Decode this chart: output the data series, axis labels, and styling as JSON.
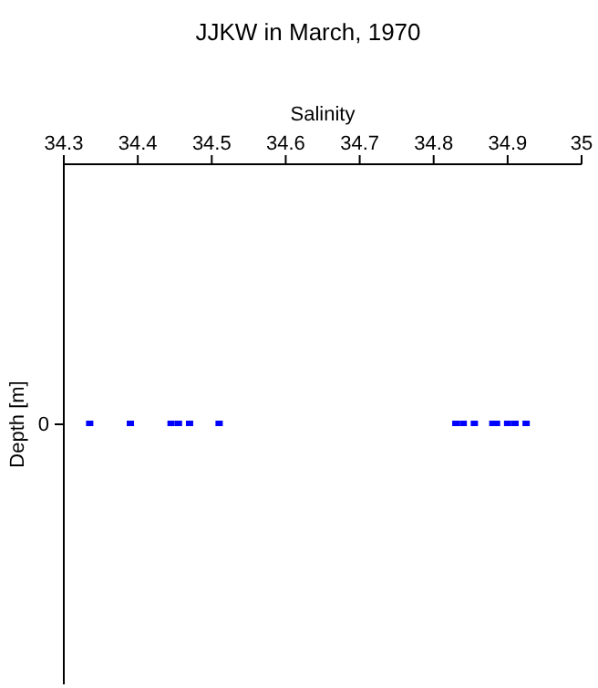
{
  "chart_data": {
    "type": "scatter",
    "orientation": "horizontal",
    "title": "JJKW in March, 1970",
    "xlabel": "Salinity",
    "ylabel": "Depth [m]",
    "categories": [
      "0"
    ],
    "xlim": [
      34.3,
      35
    ],
    "xticks": [
      34.3,
      34.4,
      34.5,
      34.6,
      34.7,
      34.8,
      34.9,
      35
    ],
    "marker": "square",
    "series": [
      {
        "color": "#0000ff",
        "values": [
          34.335
        ]
      },
      {
        "color": "#0000ff",
        "values": [
          34.39
        ]
      },
      {
        "color": "#0000ff",
        "values": [
          34.445
        ]
      },
      {
        "color": "#0000ff",
        "values": [
          34.455
        ]
      },
      {
        "color": "#0000ff",
        "values": [
          34.47
        ]
      },
      {
        "color": "#0000ff",
        "values": [
          34.51
        ]
      },
      {
        "color": "#0000ff",
        "values": [
          34.83
        ]
      },
      {
        "color": "#0000ff",
        "values": [
          34.84
        ]
      },
      {
        "color": "#0000ff",
        "values": [
          34.855
        ]
      },
      {
        "color": "#0000ff",
        "values": [
          34.88
        ]
      },
      {
        "color": "#0000ff",
        "values": [
          34.885
        ]
      },
      {
        "color": "#0000ff",
        "values": [
          34.9
        ]
      },
      {
        "color": "#0000ff",
        "values": [
          34.91
        ]
      },
      {
        "color": "#0000ff",
        "values": [
          34.925
        ]
      }
    ]
  }
}
